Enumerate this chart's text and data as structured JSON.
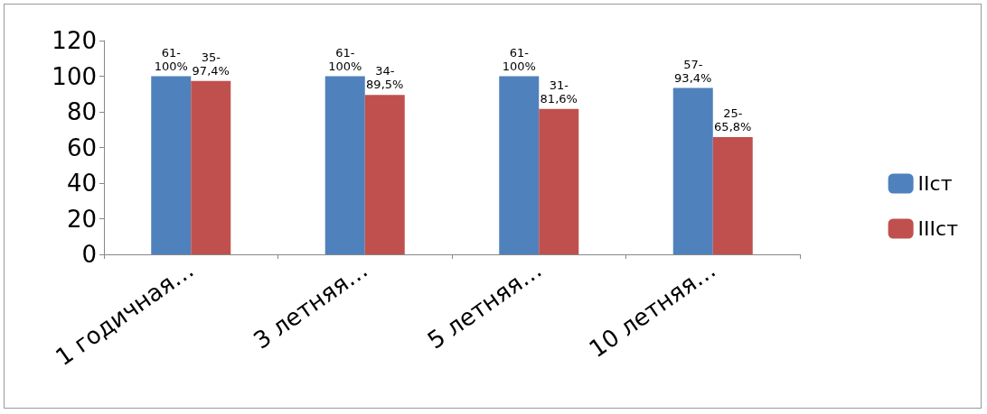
{
  "chart_data": {
    "type": "bar",
    "categories": [
      "1 годичная…",
      "3 летняя…",
      "5 летняя…",
      "10 летняя…"
    ],
    "series": [
      {
        "name": "IIст",
        "color": "#4f81bd",
        "values": [
          100,
          100,
          100,
          93.4
        ]
      },
      {
        "name": "IIIст",
        "color": "#c0504d",
        "values": [
          97.4,
          89.5,
          81.6,
          65.8
        ]
      }
    ],
    "annotations": [
      {
        "text": "61-100%",
        "x": "1 годичная…",
        "y": 100
      },
      {
        "text": "35-97,4%",
        "x": "1 годичная…",
        "y": 97.4
      },
      {
        "text": "61-100%",
        "x": "3 летняя…",
        "y": 100
      },
      {
        "text": "34-89,5%",
        "x": "3 летняя…",
        "y": 89.5
      },
      {
        "text": "61-100%",
        "x": "5 летняя…",
        "y": 100
      },
      {
        "text": "31-81,6%",
        "x": "5 летняя…",
        "y": 81.6
      },
      {
        "text": "57-93,4%",
        "x": "10 летняя…",
        "y": 93.4
      },
      {
        "text": "25-65,8%",
        "x": "10 летняя…",
        "y": 65.8
      }
    ],
    "ylim": [
      0,
      120
    ],
    "yticks": [
      0,
      20,
      40,
      60,
      80,
      100,
      120
    ],
    "grid": false,
    "legend": "right"
  }
}
